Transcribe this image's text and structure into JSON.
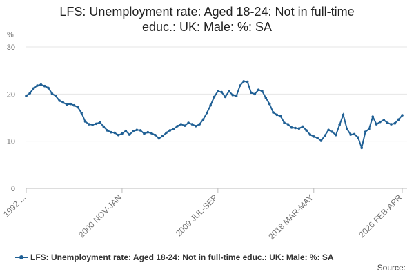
{
  "chart_data": {
    "type": "line",
    "title": "LFS: Unemployment rate: Aged 18-24: Not in full-time educ.: UK: Male: %: SA",
    "y_label": "%",
    "source": "Source:",
    "categories": [
      "1992 ...",
      null,
      null,
      null,
      null,
      null,
      null,
      null,
      null,
      null,
      null,
      null,
      null,
      null,
      null,
      null,
      null,
      null,
      null,
      null,
      null,
      null,
      null,
      null,
      null,
      null,
      "2000 NOV-JAN",
      null,
      null,
      null,
      null,
      null,
      null,
      null,
      null,
      null,
      null,
      null,
      null,
      null,
      null,
      null,
      null,
      null,
      null,
      null,
      null,
      null,
      null,
      null,
      null,
      null,
      "2009 JUL-SEP",
      null,
      null,
      null,
      null,
      null,
      null,
      null,
      null,
      null,
      null,
      null,
      null,
      null,
      null,
      null,
      null,
      null,
      null,
      null,
      null,
      null,
      null,
      null,
      null,
      null,
      "2018 MAR-MAY",
      null,
      null,
      null,
      null,
      null,
      null,
      null,
      null,
      null,
      null,
      null,
      null,
      null,
      null,
      null,
      null,
      null,
      null,
      null,
      null,
      null,
      null,
      null,
      "2026 FEB-APR"
    ],
    "series": [
      {
        "name": "LFS: Unemployment rate: Aged 18-24: Not in full-time educ.: UK: Male: %: SA",
        "color": "#206095",
        "values": [
          19.6,
          20.2,
          21.2,
          21.8,
          22.0,
          21.7,
          21.3,
          20.1,
          19.6,
          18.6,
          18.2,
          17.8,
          17.9,
          17.6,
          17.2,
          16.0,
          14.2,
          13.6,
          13.5,
          13.7,
          14.0,
          13.1,
          12.3,
          11.9,
          11.8,
          11.3,
          11.6,
          12.2,
          11.4,
          12.1,
          12.4,
          12.3,
          11.6,
          11.9,
          11.7,
          11.3,
          10.6,
          11.1,
          11.8,
          12.3,
          12.6,
          13.2,
          13.6,
          13.3,
          13.9,
          13.6,
          13.2,
          13.6,
          14.6,
          16.0,
          17.6,
          19.4,
          20.6,
          20.4,
          19.4,
          20.6,
          19.8,
          19.6,
          21.8,
          22.7,
          22.6,
          20.3,
          20.0,
          20.9,
          20.6,
          19.2,
          17.9,
          16.1,
          15.6,
          15.3,
          13.9,
          13.6,
          12.9,
          12.8,
          12.7,
          13.1,
          12.3,
          11.4,
          11.0,
          10.7,
          10.1,
          11.2,
          12.4,
          12.0,
          11.3,
          13.5,
          15.6,
          12.6,
          11.4,
          11.5,
          10.8,
          8.6,
          12.0,
          12.6,
          15.2,
          13.6,
          14.1,
          14.5,
          13.9,
          13.6,
          13.8,
          14.6,
          15.5
        ]
      }
    ],
    "ylim": [
      0,
      30
    ],
    "yticks": [
      0,
      10,
      20,
      30
    ],
    "grid": true
  }
}
